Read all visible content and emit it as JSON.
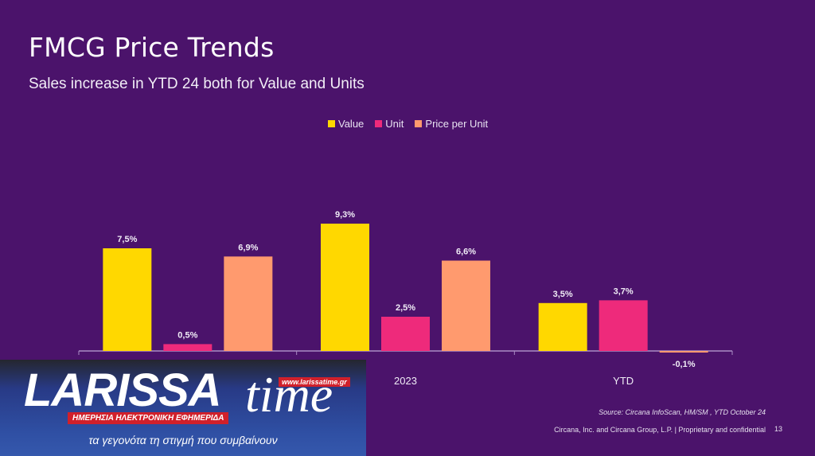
{
  "header": {
    "title": "FMCG Price Trends",
    "subtitle": "Sales increase in YTD 24 both for Value and Units"
  },
  "legend": [
    {
      "label": "Value",
      "color": "#ffd800"
    },
    {
      "label": "Unit",
      "color": "#ee2a7b"
    },
    {
      "label": "Price per Unit",
      "color": "#ff9a6e"
    }
  ],
  "chart_data": {
    "type": "bar",
    "title": "FMCG Price Trends",
    "subtitle": "Sales increase in YTD 24 both for Value and Units",
    "categories": [
      "",
      "2023",
      "YTD"
    ],
    "series": [
      {
        "name": "Value",
        "color": "#ffd800",
        "values": [
          7.5,
          9.3,
          3.5
        ],
        "labels": [
          "7,5%",
          "9,3%",
          "3,5%"
        ]
      },
      {
        "name": "Unit",
        "color": "#ee2a7b",
        "values": [
          0.5,
          2.5,
          3.7
        ],
        "labels": [
          "0,5%",
          "2,5%",
          "3,7%"
        ]
      },
      {
        "name": "Price per Unit",
        "color": "#ff9a6e",
        "values": [
          6.9,
          6.6,
          -0.1
        ],
        "labels": [
          "6,9%",
          "6,6%",
          "-0,1%"
        ]
      }
    ],
    "xlabel": "",
    "ylabel": "",
    "ylim": [
      -0.1,
      9.3
    ],
    "grid": false,
    "legend_position": "top-center"
  },
  "footer": {
    "source": "Source: Circana InfoScan, HM/SM , YTD October 24",
    "copyright": "Circana, Inc. and Circana Group, L.P. |  Proprietary and confidential",
    "page_number": "13"
  },
  "overlay_logo": {
    "brand": "LARISSA",
    "brand_suffix": "time",
    "url": "www.larissatime.gr",
    "tagline": "ΗΜΕΡΗΣΙΑ ΗΛΕΚΤΡΟΝΙΚΗ ΕΦΗΜΕΡΙΔΑ",
    "slogan": "τα γεγονότα τη στιγμή που συμβαίνουν"
  }
}
